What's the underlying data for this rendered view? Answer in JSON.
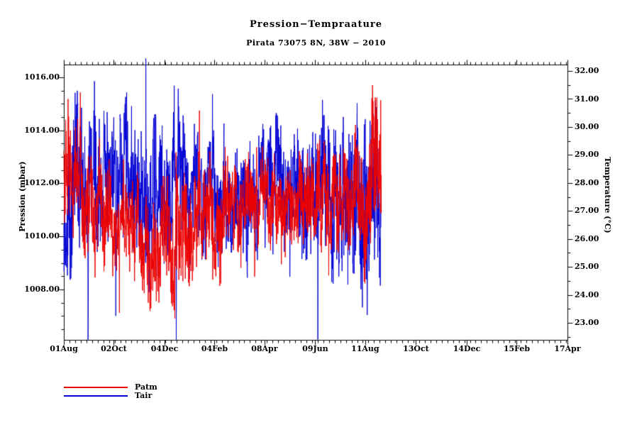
{
  "colors": {
    "axis": "#000000",
    "background": "#ffffff",
    "patm": "#ec0000",
    "tair": "#0000d4"
  },
  "legend": {
    "items": [
      {
        "label": "Patm",
        "color": "#ec0000"
      },
      {
        "label": "Tair",
        "color": "#0000d4"
      }
    ]
  },
  "chart_data": {
    "type": "line",
    "title": "Pression−Tempraature",
    "subtitle": "Pirata 73075 8N, 38W − 2010",
    "grid": false,
    "legend_position": "bottom-left",
    "x_axis": {
      "tick_labels": [
        "01Aug",
        "02Oct",
        "04Dec",
        "04Feb",
        "08Apr",
        "09Jun",
        "11Aug",
        "13Oct",
        "14Dec",
        "15Feb",
        "17Apr"
      ],
      "major_tick_days": [
        0,
        62,
        125,
        187,
        249,
        312,
        374,
        437,
        500,
        562,
        625
      ],
      "minor_tick_interval_days": 7,
      "total_days": 625,
      "data_end_day": 394
    },
    "y_left": {
      "label": "Pression (mbar)",
      "range": [
        1006.1,
        1016.48
      ],
      "tick_values": [
        1008,
        1010,
        1012,
        1014,
        1016
      ],
      "tick_labels": [
        "1008.00",
        "1010.00",
        "1012.00",
        "1014.00",
        "1016.00"
      ],
      "minor_step": 0.5
    },
    "y_right": {
      "label": "Temperature (°C)",
      "range": [
        22.39,
        32.23
      ],
      "tick_values": [
        23,
        24,
        25,
        26,
        27,
        28,
        29,
        30,
        31,
        32
      ],
      "tick_labels": [
        "23.00",
        "24.00",
        "25.00",
        "26.00",
        "27.00",
        "28.00",
        "29.00",
        "30.00",
        "31.00",
        "32.00"
      ],
      "minor_step": 0.5
    },
    "samples_per_day": 4,
    "draw_order": [
      "Tair",
      "Patm"
    ],
    "control_point_format": "[day, mean, halfRange] piecewise-linear envelope of the noisy series",
    "series": [
      {
        "name": "Patm",
        "unit": "mbar",
        "axis": "left",
        "color": "#ec0000",
        "seed": 7,
        "phase": 0.0,
        "clamp": [
          1005.9,
          1016.5
        ],
        "control_points": [
          [
            0,
            1012.3,
            3.2
          ],
          [
            12,
            1011.6,
            2.6
          ],
          [
            40,
            1011.0,
            2.3
          ],
          [
            62,
            1010.4,
            2.1
          ],
          [
            95,
            1010.1,
            2.4
          ],
          [
            125,
            1009.9,
            2.9
          ],
          [
            150,
            1010.3,
            2.6
          ],
          [
            187,
            1011.2,
            2.4
          ],
          [
            220,
            1011.3,
            2.1
          ],
          [
            250,
            1011.4,
            2.0
          ],
          [
            285,
            1011.6,
            2.1
          ],
          [
            312,
            1011.7,
            2.3
          ],
          [
            345,
            1011.8,
            2.6
          ],
          [
            370,
            1012.0,
            3.0
          ],
          [
            394,
            1012.4,
            3.2
          ]
        ]
      },
      {
        "name": "Tair",
        "unit": "degC",
        "axis": "right",
        "color": "#0000d4",
        "seed": 13,
        "phase": 1.7,
        "clamp": [
          22.4,
          32.45
        ],
        "control_points": [
          [
            0,
            27.4,
            3.4
          ],
          [
            20,
            28.0,
            3.4
          ],
          [
            50,
            28.3,
            3.1
          ],
          [
            80,
            28.3,
            3.2
          ],
          [
            110,
            28.1,
            3.1
          ],
          [
            140,
            27.8,
            2.9
          ],
          [
            170,
            27.4,
            2.7
          ],
          [
            200,
            27.5,
            2.3
          ],
          [
            230,
            27.6,
            2.4
          ],
          [
            260,
            27.8,
            2.5
          ],
          [
            290,
            27.8,
            2.7
          ],
          [
            320,
            27.5,
            3.1
          ],
          [
            350,
            27.3,
            3.5
          ],
          [
            375,
            27.5,
            3.9
          ],
          [
            394,
            27.8,
            3.9
          ]
        ]
      }
    ]
  }
}
